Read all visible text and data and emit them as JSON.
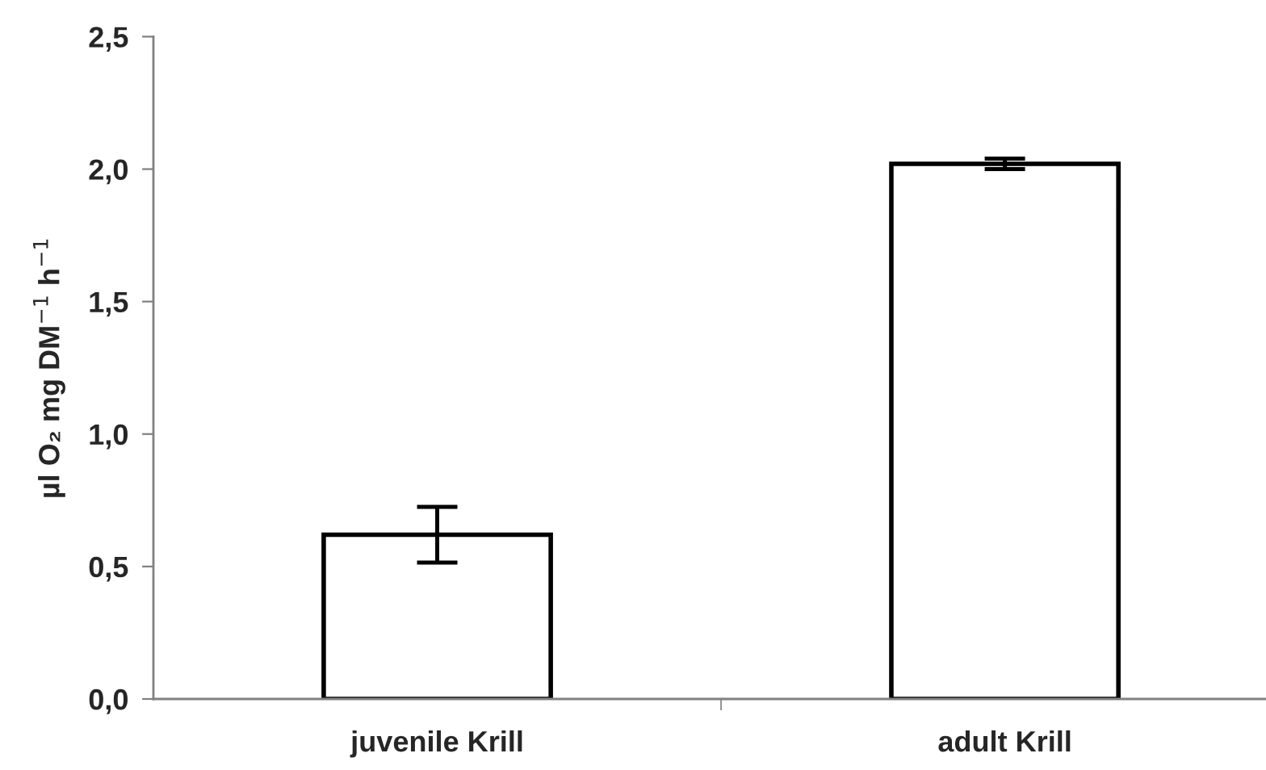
{
  "chart_data": {
    "type": "bar",
    "ylabel": "µl O₂ mg DM$^{−1}$ h$^{−1}$",
    "categories": [
      "juvenile Krill",
      "adult Krill"
    ],
    "values": [
      0.62,
      2.02
    ],
    "errors": [
      0.105,
      0.02
    ],
    "color": "#ffffff",
    "ylim": [
      0,
      2.5
    ],
    "yticks": [
      {
        "value": 0,
        "label": "0,0"
      },
      {
        "value": 0.5,
        "label": "0,5"
      },
      {
        "value": 1,
        "label": "1,0"
      },
      {
        "value": 1.5,
        "label": "1,5"
      },
      {
        "value": 2,
        "label": "2,0"
      },
      {
        "value": 2.5,
        "label": "2,5"
      }
    ],
    "grid": false,
    "legend": false
  }
}
